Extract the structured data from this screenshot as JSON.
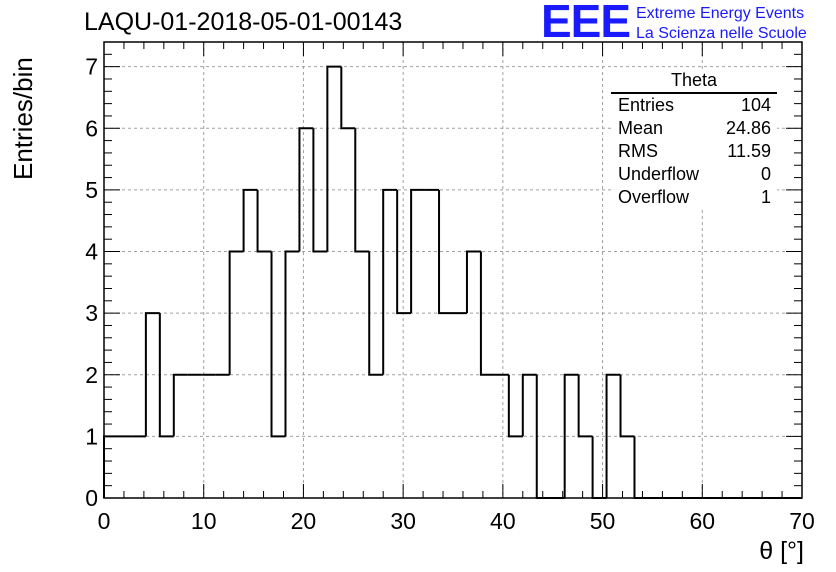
{
  "header": {
    "run_title": "LAQU-01-2018-05-01-00143",
    "logo_text": "EEE",
    "brand_line1": "Extreme Energy Events",
    "brand_line2": "La Scienza nelle Scuole"
  },
  "colors": {
    "brand_blue": "#1a1aff",
    "histogram_line": "#000000",
    "grid": "#a0a0a0"
  },
  "stats": {
    "title": "Theta",
    "rows": [
      {
        "label": "Entries",
        "value": "104"
      },
      {
        "label": "Mean",
        "value": "24.86"
      },
      {
        "label": "RMS",
        "value": "11.59"
      },
      {
        "label": "Underflow",
        "value": "0"
      },
      {
        "label": "Overflow",
        "value": "1"
      }
    ]
  },
  "chart_data": {
    "type": "histogram",
    "title": "LAQU-01-2018-05-01-00143",
    "xlabel": "θ [°]",
    "ylabel": "Entries/bin",
    "xlim": [
      0,
      70
    ],
    "ylim": [
      0,
      7.4
    ],
    "grid": true,
    "x_ticks": [
      0,
      10,
      20,
      30,
      40,
      50,
      60,
      70
    ],
    "y_ticks": [
      0,
      1,
      2,
      3,
      4,
      5,
      6,
      7
    ],
    "bin_width": 1.4,
    "values": [
      1,
      1,
      1,
      3,
      1,
      2,
      2,
      2,
      2,
      4,
      5,
      4,
      1,
      4,
      6,
      4,
      7,
      6,
      4,
      2,
      5,
      3,
      5,
      5,
      3,
      3,
      4,
      2,
      2,
      1,
      2,
      0,
      0,
      2,
      1,
      0,
      2,
      1,
      0,
      0,
      0,
      0,
      0,
      0,
      0,
      0,
      0,
      0,
      0,
      0
    ]
  }
}
